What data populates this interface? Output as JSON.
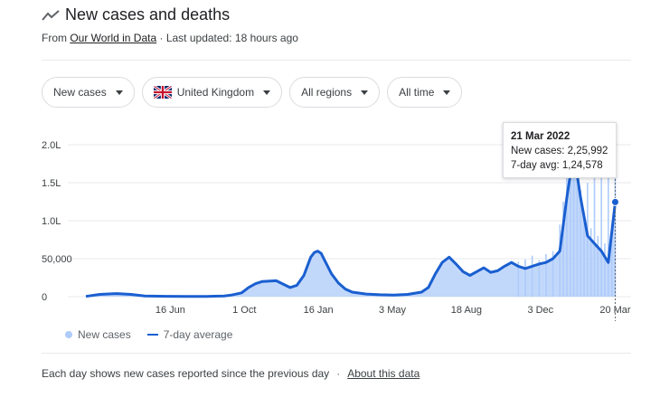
{
  "header": {
    "title": "New cases and deaths",
    "icon": "trending-up-icon"
  },
  "source": {
    "prefix": "From ",
    "link_label": "Our World in Data",
    "updated": "· Last updated: 18 hours ago"
  },
  "filters": [
    {
      "label": "New cases"
    },
    {
      "label": "United Kingdom",
      "flag": "uk-flag-icon"
    },
    {
      "label": "All regions"
    },
    {
      "label": "All time"
    }
  ],
  "tooltip": {
    "date": "21 Mar 2022",
    "new_cases_line": "New cases: 2,25,992",
    "avg_line": "7-day avg: 1,24,578"
  },
  "legend": {
    "new_cases": "New cases",
    "avg": "7-day average"
  },
  "footer": {
    "text": "Each day shows new cases reported since the previous day",
    "link_label": "About this data"
  },
  "colors": {
    "line": "#1a5fd0",
    "bars": "#aecbfa",
    "grid": "#e8eaed"
  },
  "chart_data": {
    "type": "line",
    "title": "New cases and deaths",
    "y_ticks": [
      "0",
      "50,000",
      "1.0L",
      "1.5L",
      "2.0L"
    ],
    "y_tick_values": [
      0,
      50000,
      100000,
      150000,
      200000
    ],
    "ylim": [
      0,
      200000
    ],
    "x_ticks": [
      "16 Jun",
      "1 Oct",
      "16 Jan",
      "3 May",
      "18 Aug",
      "3 Dec",
      "20 Mar"
    ],
    "x_tick_days": [
      137,
      244,
      351,
      458,
      565,
      672,
      780
    ],
    "x_range_days": [
      15,
      782
    ],
    "series": [
      {
        "name": "7-day average",
        "day": [
          15,
          35,
          60,
          80,
          100,
          130,
          160,
          190,
          200,
          215,
          225,
          240,
          250,
          260,
          270,
          290,
          310,
          320,
          330,
          335,
          340,
          345,
          350,
          355,
          360,
          370,
          380,
          390,
          400,
          420,
          440,
          460,
          480,
          500,
          510,
          520,
          530,
          540,
          550,
          560,
          570,
          580,
          590,
          600,
          610,
          620,
          630,
          640,
          650,
          660,
          670,
          680,
          690,
          700,
          710,
          720,
          730,
          740,
          750,
          760,
          770,
          780
        ],
        "values": [
          300,
          3000,
          4000,
          3000,
          1000,
          500,
          300,
          300,
          600,
          1000,
          2000,
          5000,
          12000,
          17000,
          20000,
          21000,
          12000,
          15000,
          28000,
          40000,
          52000,
          58000,
          60000,
          57000,
          48000,
          30000,
          18000,
          10000,
          6000,
          3500,
          2500,
          2000,
          3000,
          6000,
          12000,
          30000,
          45000,
          52000,
          43000,
          33000,
          28000,
          33000,
          38000,
          32000,
          34000,
          40000,
          45000,
          40000,
          37000,
          40000,
          43000,
          45000,
          50000,
          60000,
          130000,
          190000,
          130000,
          80000,
          70000,
          60000,
          45000,
          124578
        ]
      },
      {
        "name": "New cases",
        "day": [
          640,
          650,
          660,
          670,
          680,
          690,
          700,
          705,
          710,
          715,
          720,
          725,
          730,
          735,
          740,
          745,
          750,
          755,
          760,
          765,
          770,
          775,
          780
        ],
        "values": [
          46000,
          49000,
          54000,
          48000,
          56000,
          60000,
          95000,
          125000,
          160000,
          170000,
          200000,
          180000,
          140000,
          110000,
          150000,
          90000,
          165000,
          80000,
          190000,
          70000,
          160000,
          95000,
          225992
        ]
      }
    ],
    "highlight": {
      "day": 780,
      "date": "21 Mar 2022",
      "new_cases": 225992,
      "avg": 124578
    }
  }
}
